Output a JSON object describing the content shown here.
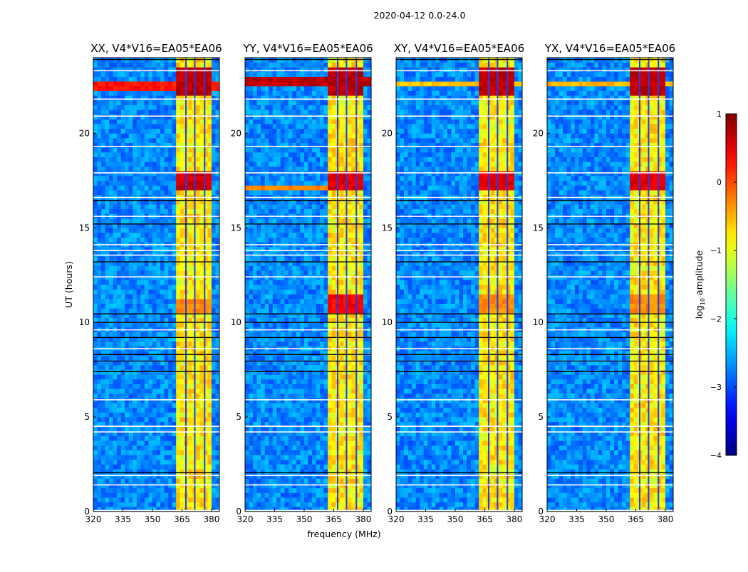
{
  "figure_title": "2020-04-12 0.0-24.0",
  "chart_data": {
    "type": "heatmap",
    "title": "2020-04-12 0.0-24.0",
    "xlabel": "frequency (MHz)",
    "ylabel": "UT (hours)",
    "xlim": [
      320,
      384
    ],
    "ylim": [
      0,
      24
    ],
    "xticks": [
      "320",
      "335",
      "350",
      "365",
      "380"
    ],
    "xtick_values": [
      320,
      335,
      350,
      365,
      380
    ],
    "yticks": [
      "0",
      "5",
      "10",
      "15",
      "20"
    ],
    "ytick_values": [
      0,
      5,
      10,
      15,
      20
    ],
    "colorbar": {
      "label_main": "log",
      "label_sub": "10",
      "label_rest": " amplitude",
      "range": [
        -4,
        1
      ],
      "ticks": [
        "1",
        "0",
        "−1",
        "−2",
        "−3",
        "−4"
      ],
      "tick_values": [
        1,
        0,
        -1,
        -2,
        -3,
        -4
      ],
      "colormap": "jet"
    },
    "grid": {
      "freq_bin_mhz": 2,
      "time_bin_hours": 0.25
    },
    "background_level": -2.7,
    "band": {
      "range_mhz": [
        362,
        380
      ],
      "level": -0.8
    },
    "band_gaps_mhz": [
      367,
      371.5,
      376.5
    ],
    "flagged_hours_white": [
      0.05,
      1.4,
      1.9,
      4.2,
      4.5,
      5.9,
      8.6,
      9.6,
      12.4,
      13.55,
      13.8,
      14.1,
      15.6,
      16.6,
      17.9,
      19.3,
      20.9,
      21.8,
      23.3
    ],
    "dropout_hours_black": [
      2.05,
      7.4,
      7.95,
      8.3,
      9.2,
      10.0,
      10.45,
      13.2,
      15.2,
      16.45,
      23.9
    ],
    "panels": [
      {
        "title": "XX, V4*V16=EA05*EA06",
        "features": [
          {
            "t": [
              22.3,
              22.8
            ],
            "f": [
              320,
              384
            ],
            "level": 0.3
          },
          {
            "t": [
              21.9,
              23.5
            ],
            "f": [
              362,
              380
            ],
            "level": 0.7
          },
          {
            "t": [
              17.0,
              17.9
            ],
            "f": [
              362,
              380
            ],
            "level": 0.6
          },
          {
            "t": [
              10.5,
              11.3
            ],
            "f": [
              362,
              380
            ],
            "level": -0.3
          }
        ]
      },
      {
        "title": "YY, V4*V16=EA05*EA06",
        "features": [
          {
            "t": [
              22.4,
              23.0
            ],
            "f": [
              320,
              384
            ],
            "level": 0.7
          },
          {
            "t": [
              17.1,
              17.3
            ],
            "f": [
              320,
              362
            ],
            "level": -0.3
          },
          {
            "t": [
              21.9,
              23.5
            ],
            "f": [
              362,
              380
            ],
            "level": 0.7
          },
          {
            "t": [
              17.0,
              17.9
            ],
            "f": [
              362,
              380
            ],
            "level": 0.5
          },
          {
            "t": [
              10.4,
              11.6
            ],
            "f": [
              362,
              380
            ],
            "level": 0.4
          }
        ]
      },
      {
        "title": "XY, V4*V16=EA05*EA06",
        "features": [
          {
            "t": [
              22.5,
              22.8
            ],
            "f": [
              320,
              384
            ],
            "level": -0.6
          },
          {
            "t": [
              21.9,
              23.5
            ],
            "f": [
              362,
              380
            ],
            "level": 0.7
          },
          {
            "t": [
              17.0,
              17.9
            ],
            "f": [
              362,
              380
            ],
            "level": 0.5
          },
          {
            "t": [
              10.4,
              11.4
            ],
            "f": [
              362,
              380
            ],
            "level": -0.3
          }
        ]
      },
      {
        "title": "YX, V4*V16=EA05*EA06",
        "features": [
          {
            "t": [
              22.5,
              22.8
            ],
            "f": [
              320,
              384
            ],
            "level": -0.5
          },
          {
            "t": [
              21.9,
              23.5
            ],
            "f": [
              362,
              380
            ],
            "level": 0.7
          },
          {
            "t": [
              17.0,
              17.9
            ],
            "f": [
              362,
              380
            ],
            "level": 0.5
          },
          {
            "t": [
              10.4,
              11.4
            ],
            "f": [
              362,
              380
            ],
            "level": -0.3
          }
        ]
      }
    ]
  }
}
